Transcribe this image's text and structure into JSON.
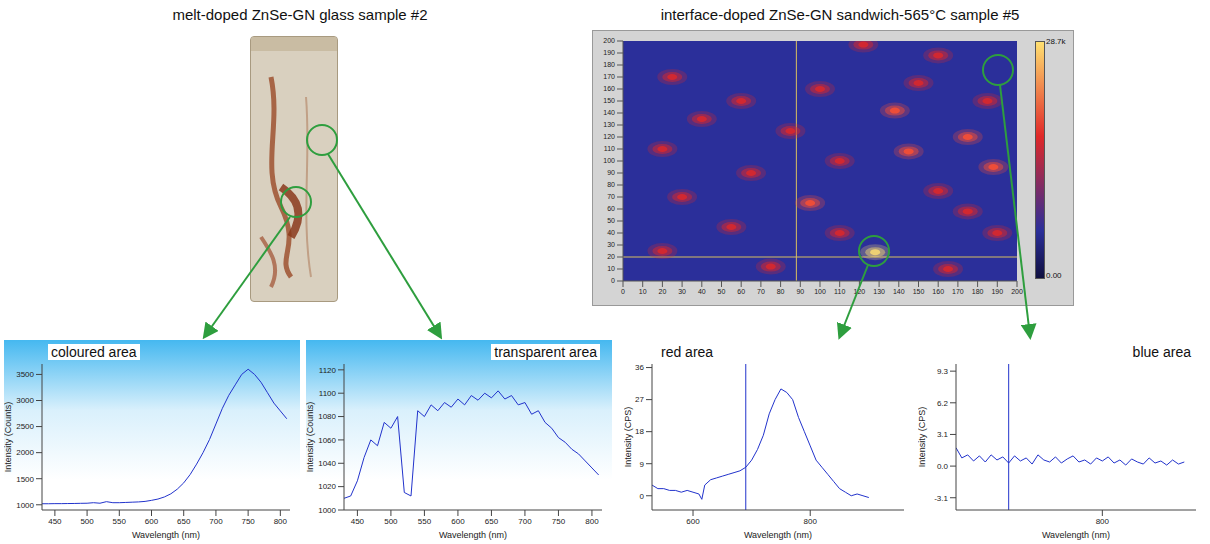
{
  "titles": {
    "left": "melt-doped ZnSe-GN glass sample #2",
    "right": "interface-doped ZnSe-GN sandwich-565°C sample #5"
  },
  "heatmap": {
    "xlim": [
      0,
      200
    ],
    "ylim": [
      0,
      200
    ],
    "xticks": [
      0,
      10,
      20,
      30,
      40,
      50,
      60,
      70,
      80,
      90,
      100,
      110,
      120,
      130,
      140,
      150,
      160,
      170,
      180,
      190,
      200
    ],
    "yticks": [
      0,
      10,
      20,
      30,
      40,
      50,
      60,
      70,
      80,
      90,
      100,
      110,
      120,
      130,
      140,
      150,
      160,
      170,
      180,
      190,
      200
    ],
    "cursor": {
      "x": 88,
      "y": 20
    },
    "spots": [
      {
        "x": 122,
        "y": 197,
        "value": 16000
      },
      {
        "x": 160,
        "y": 188,
        "value": 14000
      },
      {
        "x": 25,
        "y": 170,
        "value": 15000
      },
      {
        "x": 100,
        "y": 160,
        "value": 17000
      },
      {
        "x": 150,
        "y": 165,
        "value": 16000
      },
      {
        "x": 60,
        "y": 150,
        "value": 15000
      },
      {
        "x": 138,
        "y": 142,
        "value": 18000
      },
      {
        "x": 185,
        "y": 150,
        "value": 15000
      },
      {
        "x": 40,
        "y": 135,
        "value": 17000
      },
      {
        "x": 85,
        "y": 125,
        "value": 16000
      },
      {
        "x": 175,
        "y": 120,
        "value": 20000
      },
      {
        "x": 145,
        "y": 108,
        "value": 19000
      },
      {
        "x": 20,
        "y": 110,
        "value": 16000
      },
      {
        "x": 110,
        "y": 100,
        "value": 17000
      },
      {
        "x": 65,
        "y": 90,
        "value": 15000
      },
      {
        "x": 188,
        "y": 95,
        "value": 18000
      },
      {
        "x": 160,
        "y": 75,
        "value": 17000
      },
      {
        "x": 30,
        "y": 70,
        "value": 16000
      },
      {
        "x": 95,
        "y": 65,
        "value": 18000
      },
      {
        "x": 175,
        "y": 58,
        "value": 16000
      },
      {
        "x": 55,
        "y": 45,
        "value": 15000
      },
      {
        "x": 110,
        "y": 40,
        "value": 16000
      },
      {
        "x": 190,
        "y": 40,
        "value": 15000
      },
      {
        "x": 128,
        "y": 24,
        "value": 28000
      },
      {
        "x": 20,
        "y": 25,
        "value": 15000
      },
      {
        "x": 75,
        "y": 12,
        "value": 16000
      },
      {
        "x": 165,
        "y": 10,
        "value": 17000
      }
    ],
    "color_bar": {
      "range": [
        0,
        28700
      ],
      "ticks": [
        {
          "value": 0,
          "label": "0.00"
        },
        {
          "value": 28700,
          "label": "28.7k"
        }
      ]
    }
  },
  "chart_data": [
    {
      "type": "line",
      "title": "coloured area",
      "x_label": "Wavelength (nm)",
      "y_label": "Intensity (Counts)",
      "color": "#2233cc",
      "xlim": [
        430,
        815
      ],
      "xticks": [
        450,
        500,
        550,
        600,
        650,
        700,
        750,
        800
      ],
      "ylim": [
        900,
        3700
      ],
      "yticks": [
        1000,
        1500,
        2000,
        2500,
        3000,
        3500
      ],
      "x": [
        430,
        440,
        450,
        460,
        470,
        480,
        490,
        500,
        510,
        520,
        530,
        540,
        550,
        560,
        570,
        580,
        590,
        600,
        610,
        620,
        630,
        640,
        650,
        660,
        670,
        680,
        690,
        700,
        710,
        720,
        730,
        740,
        750,
        760,
        770,
        780,
        790,
        800,
        810
      ],
      "values": [
        1020,
        1020,
        1022,
        1022,
        1024,
        1025,
        1028,
        1030,
        1040,
        1030,
        1060,
        1040,
        1040,
        1045,
        1050,
        1055,
        1065,
        1085,
        1110,
        1150,
        1210,
        1300,
        1420,
        1580,
        1780,
        2000,
        2250,
        2550,
        2850,
        3100,
        3300,
        3500,
        3600,
        3500,
        3350,
        3150,
        2950,
        2800,
        2650
      ]
    },
    {
      "type": "line",
      "title": "transparent area",
      "x_label": "Wavelength (nm)",
      "y_label": "Intensity (Counts)",
      "color": "#2233cc",
      "xlim": [
        430,
        815
      ],
      "xticks": [
        450,
        500,
        550,
        600,
        650,
        700,
        750,
        800
      ],
      "ylim": [
        1000,
        1125
      ],
      "yticks": [
        1000,
        1020,
        1040,
        1060,
        1080,
        1100,
        1120
      ],
      "x": [
        430,
        440,
        450,
        460,
        470,
        480,
        490,
        500,
        510,
        520,
        530,
        540,
        550,
        560,
        570,
        580,
        590,
        600,
        610,
        620,
        630,
        640,
        650,
        660,
        670,
        680,
        690,
        700,
        710,
        720,
        730,
        740,
        750,
        760,
        770,
        780,
        790,
        800,
        810
      ],
      "values": [
        1010,
        1012,
        1025,
        1045,
        1060,
        1055,
        1075,
        1070,
        1080,
        1015,
        1012,
        1085,
        1080,
        1090,
        1085,
        1092,
        1088,
        1095,
        1090,
        1098,
        1094,
        1100,
        1096,
        1102,
        1095,
        1098,
        1090,
        1092,
        1082,
        1085,
        1075,
        1070,
        1062,
        1058,
        1052,
        1048,
        1042,
        1036,
        1030
      ]
    },
    {
      "type": "line",
      "title": "red area",
      "x_label": "Wavelength (nm)",
      "y_label": "Intensity (CPS)",
      "color": "#2233cc",
      "cursor_x": 690,
      "xlim": [
        530,
        960
      ],
      "xticks": [
        600,
        800
      ],
      "ylim": [
        -4,
        37
      ],
      "yticks": [
        0,
        9,
        18,
        27,
        36
      ],
      "x": [
        530,
        540,
        550,
        560,
        570,
        580,
        590,
        600,
        610,
        615,
        620,
        630,
        640,
        650,
        660,
        670,
        680,
        690,
        700,
        710,
        720,
        730,
        740,
        750,
        760,
        770,
        780,
        790,
        800,
        810,
        820,
        830,
        840,
        850,
        860,
        870,
        880,
        890,
        900
      ],
      "values": [
        3,
        2,
        2,
        1.5,
        1.5,
        1,
        1.5,
        1,
        0.5,
        -1,
        3,
        4.5,
        5,
        5.5,
        6,
        6.5,
        7,
        8,
        10,
        13,
        17,
        23,
        27,
        30,
        29,
        27,
        22,
        18,
        14,
        10,
        8,
        6,
        4,
        2,
        1,
        0,
        0.5,
        0,
        -0.5
      ]
    },
    {
      "type": "line",
      "title": "blue area",
      "x_label": "Wavelength (nm)",
      "y_label": "Intensity (CPS)",
      "color": "#2233cc",
      "cursor_x": 640,
      "xlim": [
        550,
        960
      ],
      "xticks": [
        800
      ],
      "ylim": [
        -4.3,
        10
      ],
      "yticks": [
        -3.1,
        {
          "value": 0,
          "label": "0.0"
        },
        3.1,
        6.2,
        9.3
      ],
      "x": [
        550,
        560,
        570,
        580,
        590,
        600,
        610,
        620,
        630,
        640,
        650,
        660,
        670,
        680,
        690,
        700,
        710,
        720,
        730,
        740,
        750,
        760,
        770,
        780,
        790,
        800,
        810,
        820,
        830,
        840,
        850,
        860,
        870,
        880,
        890,
        900,
        910,
        920,
        930,
        940
      ],
      "values": [
        1.8,
        0.8,
        1.1,
        0.5,
        1,
        0.4,
        1.1,
        0.6,
        0.9,
        0.3,
        1,
        0.5,
        0.8,
        0.2,
        1.1,
        0.6,
        0.4,
        0.9,
        0.3,
        0.7,
        1,
        0.4,
        0.6,
        0.2,
        0.8,
        0.5,
        0.9,
        0.3,
        0.6,
        0.1,
        0.7,
        0.4,
        0.2,
        0.8,
        0.3,
        0.5,
        0.1,
        0.6,
        0.2,
        0.4
      ]
    }
  ]
}
